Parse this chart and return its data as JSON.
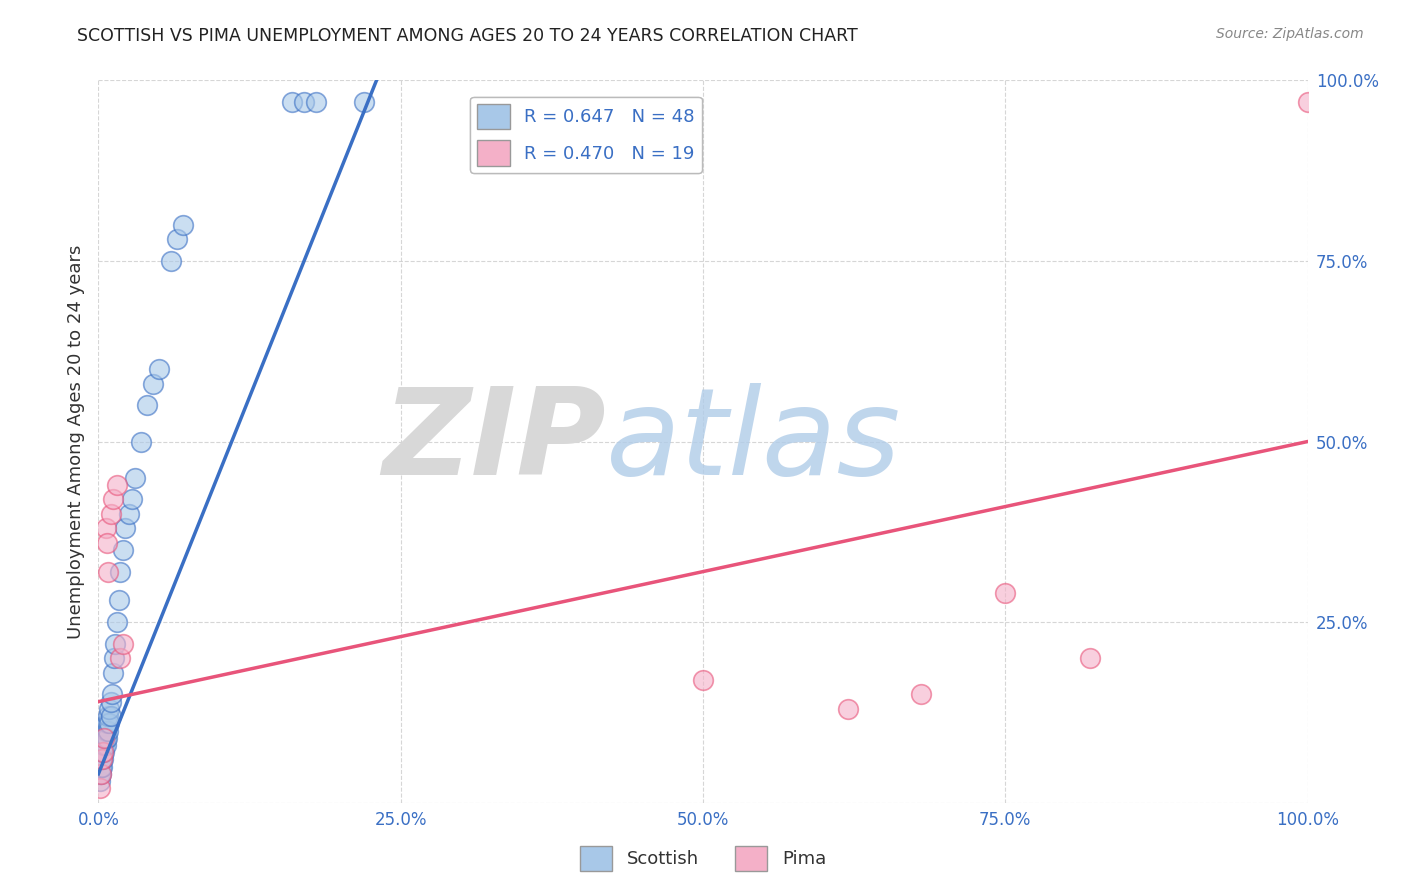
{
  "title": "SCOTTISH VS PIMA UNEMPLOYMENT AMONG AGES 20 TO 24 YEARS CORRELATION CHART",
  "source": "Source: ZipAtlas.com",
  "ylabel": "Unemployment Among Ages 20 to 24 years",
  "xlim": [
    0.0,
    1.0
  ],
  "ylim": [
    0.0,
    1.0
  ],
  "xticks": [
    0.0,
    0.25,
    0.5,
    0.75,
    1.0
  ],
  "yticks": [
    0.0,
    0.25,
    0.5,
    0.75,
    1.0
  ],
  "xticklabels": [
    "0.0%",
    "25.0%",
    "50.0%",
    "75.0%",
    "100.0%"
  ],
  "yticklabels": [
    "",
    "25.0%",
    "50.0%",
    "75.0%",
    "100.0%"
  ],
  "scottish_color": "#a8c8e8",
  "pima_color": "#f4b0c8",
  "scottish_line_color": "#3a6fc4",
  "pima_line_color": "#e8547a",
  "legend_text_color": "#3a6fc4",
  "tick_color": "#3a6fc4",
  "R_scottish": 0.647,
  "N_scottish": 48,
  "R_pima": 0.47,
  "N_pima": 19,
  "background_color": "#ffffff",
  "grid_color": "#cccccc",
  "scottish_x": [
    0.001,
    0.001,
    0.002,
    0.002,
    0.002,
    0.003,
    0.003,
    0.003,
    0.004,
    0.004,
    0.004,
    0.005,
    0.005,
    0.005,
    0.006,
    0.006,
    0.006,
    0.007,
    0.007,
    0.008,
    0.008,
    0.009,
    0.009,
    0.01,
    0.01,
    0.011,
    0.012,
    0.013,
    0.014,
    0.015,
    0.017,
    0.018,
    0.02,
    0.022,
    0.025,
    0.028,
    0.03,
    0.035,
    0.04,
    0.045,
    0.05,
    0.06,
    0.065,
    0.07,
    0.16,
    0.17,
    0.18,
    0.22
  ],
  "scottish_y": [
    0.03,
    0.04,
    0.04,
    0.05,
    0.06,
    0.05,
    0.06,
    0.07,
    0.06,
    0.07,
    0.08,
    0.07,
    0.08,
    0.09,
    0.08,
    0.09,
    0.1,
    0.09,
    0.11,
    0.1,
    0.12,
    0.11,
    0.13,
    0.12,
    0.14,
    0.15,
    0.18,
    0.2,
    0.22,
    0.25,
    0.28,
    0.32,
    0.35,
    0.38,
    0.4,
    0.42,
    0.45,
    0.5,
    0.55,
    0.58,
    0.6,
    0.75,
    0.78,
    0.8,
    0.97,
    0.97,
    0.97,
    0.97
  ],
  "pima_x": [
    0.001,
    0.002,
    0.003,
    0.004,
    0.005,
    0.006,
    0.007,
    0.008,
    0.01,
    0.012,
    0.015,
    0.018,
    0.02,
    0.5,
    0.62,
    0.68,
    0.75,
    0.82,
    1.0
  ],
  "pima_y": [
    0.02,
    0.04,
    0.06,
    0.07,
    0.09,
    0.38,
    0.36,
    0.32,
    0.4,
    0.42,
    0.44,
    0.2,
    0.22,
    0.17,
    0.13,
    0.15,
    0.29,
    0.2,
    0.97
  ],
  "scottish_line_x": [
    0.0,
    0.23
  ],
  "scottish_line_y_start": 0.04,
  "scottish_line_y_end": 1.0,
  "pima_line_x": [
    0.0,
    1.0
  ],
  "pima_line_y_start": 0.14,
  "pima_line_y_end": 0.5
}
